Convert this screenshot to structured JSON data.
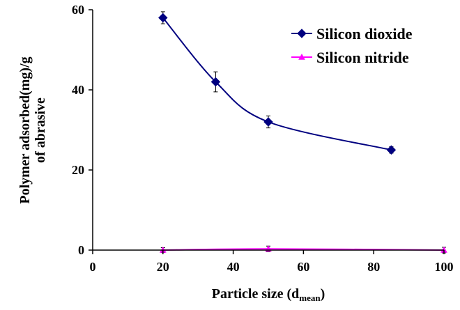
{
  "chart_data": {
    "type": "scatter",
    "xlabel_main": "Particle size (d",
    "xlabel_sub": "mean",
    "xlabel_end": ")",
    "ylabel_line1": "Polymer adsorbed(mg)/g",
    "ylabel_line2": "of abrasive",
    "xlim": [
      0,
      100
    ],
    "ylim": [
      0,
      60
    ],
    "xticks": [
      0,
      20,
      40,
      60,
      80,
      100
    ],
    "yticks": [
      0,
      20,
      40,
      60
    ],
    "grid": false,
    "legend_position": "top-right",
    "series": [
      {
        "name": "Silicon dioxide",
        "color": "#000080",
        "marker": "diamond",
        "x": [
          20,
          35,
          50,
          85
        ],
        "y": [
          58,
          42,
          32,
          25
        ],
        "err": [
          1.5,
          2.5,
          1.5,
          0.8
        ]
      },
      {
        "name": "Silicon nitride",
        "color": "#FF00FF",
        "marker": "triangle",
        "x": [
          20,
          50,
          100
        ],
        "y": [
          0,
          0.3,
          0
        ],
        "err": [
          0.6,
          0.7,
          0.7
        ]
      }
    ]
  }
}
